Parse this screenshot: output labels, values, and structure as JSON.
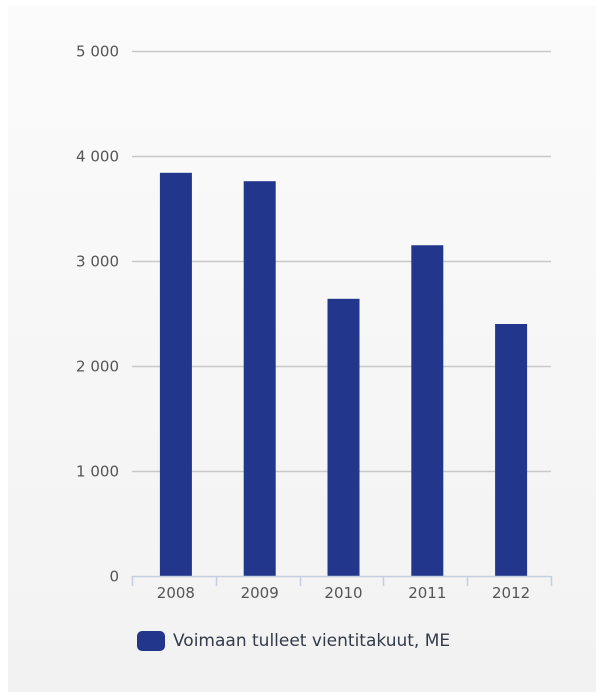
{
  "chart_data": {
    "type": "bar",
    "categories": [
      "2008",
      "2009",
      "2010",
      "2011",
      "2012"
    ],
    "series": [
      {
        "name": "Voimaan tulleet vientitakuut, ME",
        "values": [
          3840,
          3760,
          2640,
          3150,
          2400
        ],
        "color": "#22368c"
      }
    ],
    "ylim": [
      0,
      5000
    ],
    "yticks": [
      0,
      1000,
      2000,
      3000,
      4000,
      5000
    ],
    "ytick_labels": [
      "0",
      "1 000",
      "2 000",
      "3 000",
      "4 000",
      "5 000"
    ],
    "grid": true,
    "legend_position": "bottom-center"
  },
  "legend": {
    "label": "Voimaan tulleet vientitakuut, ME"
  },
  "colors": {
    "bar": "#22368c",
    "grid": "#c8c8c8",
    "axis": "#c3cfe0"
  }
}
